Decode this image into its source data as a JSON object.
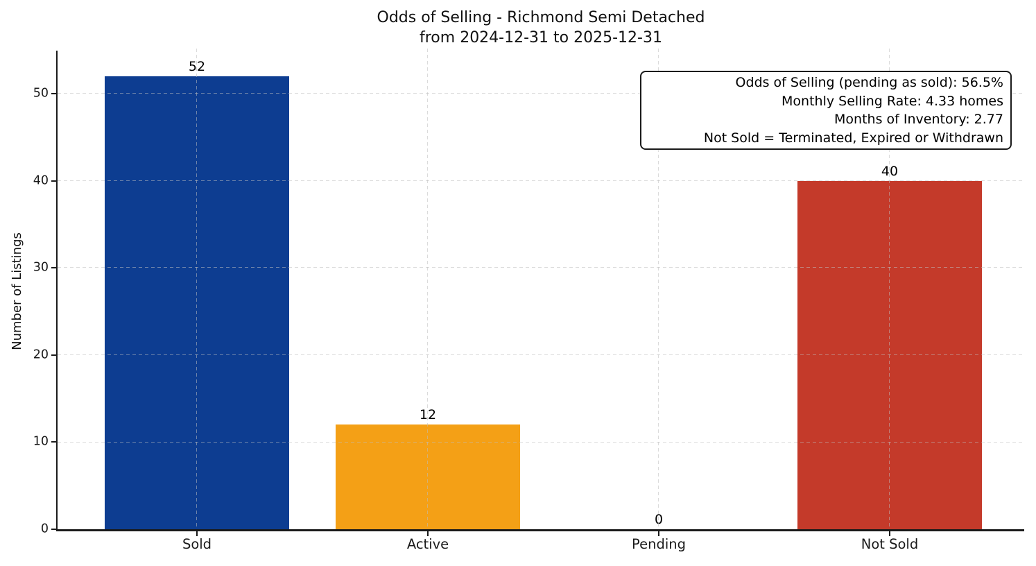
{
  "title": {
    "line1": "Odds of Selling - Richmond Semi Detached",
    "line2": "from 2024-12-31 to 2025-12-31"
  },
  "chart_data": {
    "type": "bar",
    "title": "Odds of Selling - Richmond Semi Detached\nfrom 2024-12-31 to 2025-12-31",
    "categories": [
      "Sold",
      "Active",
      "Pending",
      "Not Sold"
    ],
    "values": [
      52,
      12,
      0,
      40
    ],
    "colors": [
      "#0d3d91",
      "#f4a016",
      null,
      "#c43a2a"
    ],
    "xlabel": "",
    "ylabel": "Number of Listings",
    "yticks": [
      0,
      10,
      20,
      30,
      40,
      50
    ],
    "ylim": [
      0,
      55
    ],
    "grid": "dashed horizontal and vertical gridlines",
    "legend": "none",
    "bar_width_fraction": 0.8,
    "annotation": {
      "lines": [
        "Odds of Selling (pending as sold): 56.5%",
        "Monthly Selling Rate: 4.33 homes",
        "Months of Inventory: 2.77",
        "Not Sold = Terminated, Expired or Withdrawn"
      ]
    },
    "style": {
      "spine_color": "#1a1a1a",
      "grid_color": "#d9d9d9",
      "background": "#ffffff",
      "text_color": "#000000"
    }
  }
}
